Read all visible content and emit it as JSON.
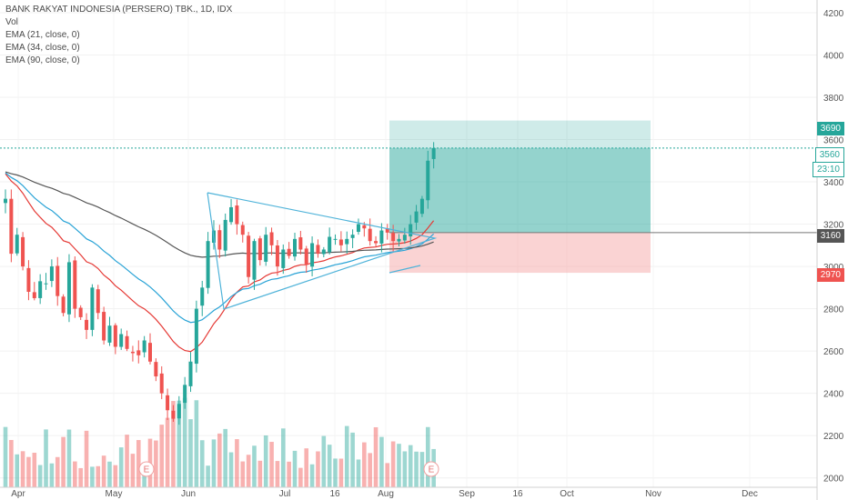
{
  "legend": {
    "symbol_line": "BANK RAKYAT INDONESIA (PERSERO) TBK., 1D, IDX",
    "vol": "Vol",
    "ema21": "EMA (21, close, 0)",
    "ema34": "EMA (34, close, 0)",
    "ema90": "EMA (90, close, 0)"
  },
  "price_labels": {
    "target": "3690",
    "last": "3560",
    "countdown": "23:10",
    "entry": "3160",
    "stop": "2970"
  },
  "earnings_marker": "E",
  "colors": {
    "up": "#26a69a",
    "down": "#ef5350",
    "ema21": "#e53935",
    "ema34": "#29a3d6",
    "ema90": "#555555",
    "triangle": "#4fb3d9",
    "profit_zone": "#26a69a",
    "loss_zone": "#f6a8a8",
    "last_line": "#26a69a"
  },
  "chart_data": {
    "type": "candlestick",
    "y_axis": {
      "ticks": [
        2000,
        2200,
        2400,
        2600,
        2800,
        3000,
        3200,
        3400,
        3600,
        3800,
        4000,
        4200
      ],
      "range": [
        1960,
        4260
      ]
    },
    "x_axis": {
      "ticks": [
        "Apr",
        "May",
        "Jun",
        "Jul",
        "16",
        "Aug",
        "Sep",
        "16",
        "Oct",
        "Nov",
        "Dec"
      ]
    },
    "series": [
      {
        "type": "candles",
        "close_values": [
          3320,
          3060,
          3150,
          3000,
          2880,
          2850,
          2930,
          2920,
          3000,
          2860,
          2780,
          3020,
          2800,
          2760,
          2700,
          2900,
          2780,
          2650,
          2720,
          2620,
          2680,
          2610,
          2590,
          2580,
          2650,
          2550,
          2480,
          2400,
          2320,
          2280,
          2350,
          2440,
          2550,
          2800,
          2900,
          3120,
          3170,
          3080,
          3220,
          3280,
          3200,
          3150,
          2950,
          3120,
          3030,
          3150,
          3100,
          3000,
          3080,
          3050,
          3130,
          3080,
          3010,
          3110,
          3060,
          3080,
          3140,
          3130,
          3100,
          3130,
          3150,
          3200,
          3180,
          3120,
          3110,
          3170,
          3160,
          3120,
          3130,
          3150,
          3200,
          3260,
          3320,
          3500,
          3560
        ]
      },
      {
        "type": "volume",
        "note": "volume bars along the bottom"
      },
      {
        "type": "line",
        "name": "EMA (21, close, 0)"
      },
      {
        "type": "line",
        "name": "EMA (34, close, 0)"
      },
      {
        "type": "line",
        "name": "EMA (90, close, 0)"
      }
    ],
    "position": {
      "entry": 3160,
      "target": 3690,
      "stop": 2970,
      "last": 3560
    }
  }
}
